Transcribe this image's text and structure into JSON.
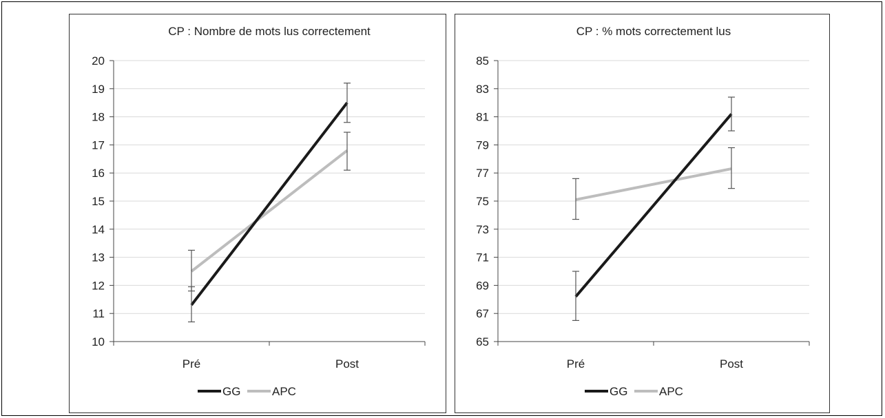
{
  "chart_data": [
    {
      "type": "line",
      "title": "CP : Nombre de mots lus correctement",
      "categories": [
        "Pré",
        "Post"
      ],
      "ylim": [
        10,
        20
      ],
      "yticks": [
        10,
        11,
        12,
        13,
        14,
        15,
        16,
        17,
        18,
        19,
        20
      ],
      "grid": true,
      "legend": "bottom",
      "series": [
        {
          "name": "GG",
          "color": "#1a1a1a",
          "values": [
            11.3,
            18.5
          ],
          "err_low": [
            10.7,
            17.8
          ],
          "err_high": [
            11.95,
            19.2
          ]
        },
        {
          "name": "APC",
          "color": "#bdbdbd",
          "values": [
            12.5,
            16.8
          ],
          "err_low": [
            11.8,
            16.1
          ],
          "err_high": [
            13.25,
            17.45
          ]
        }
      ]
    },
    {
      "type": "line",
      "title": "CP : % mots correctement lus",
      "categories": [
        "Pré",
        "Post"
      ],
      "ylim": [
        65,
        85
      ],
      "yticks": [
        65,
        67,
        69,
        71,
        73,
        75,
        77,
        79,
        81,
        83,
        85
      ],
      "grid": true,
      "legend": "bottom",
      "series": [
        {
          "name": "GG",
          "color": "#1a1a1a",
          "values": [
            68.2,
            81.2
          ],
          "err_low": [
            66.5,
            80.0
          ],
          "err_high": [
            70.0,
            82.4
          ]
        },
        {
          "name": "APC",
          "color": "#bdbdbd",
          "values": [
            75.1,
            77.3
          ],
          "err_low": [
            73.7,
            75.9
          ],
          "err_high": [
            76.6,
            78.8
          ]
        }
      ]
    }
  ]
}
